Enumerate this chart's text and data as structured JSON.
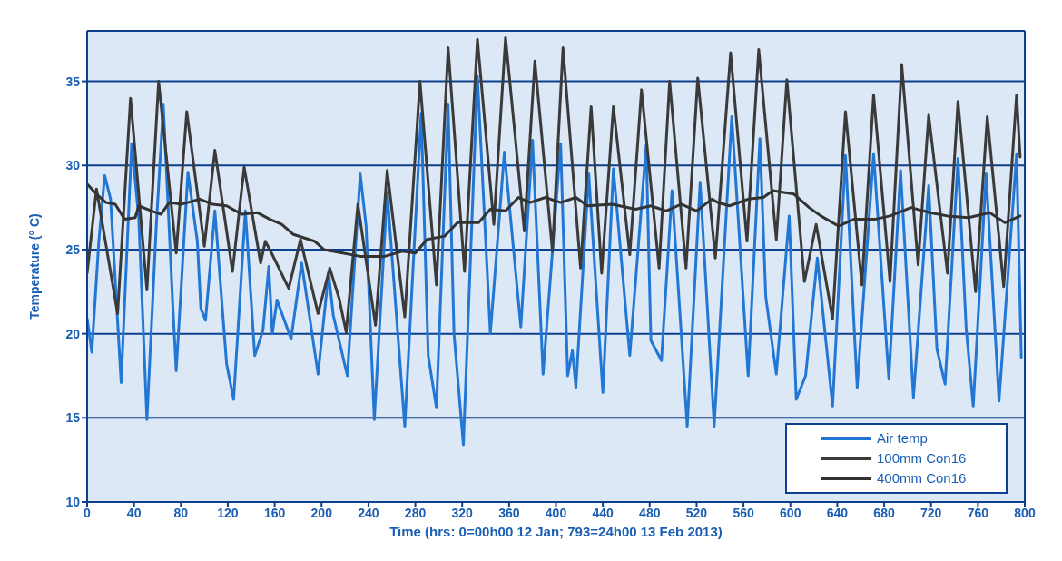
{
  "chart_data": {
    "type": "line",
    "xlabel": "Time (hrs: 0=00h00 12 Jan; 793=24h00 13 Feb 2013)",
    "ylabel": "Temperature (° C)",
    "xlim": [
      0,
      800
    ],
    "xticks": [
      0,
      40,
      80,
      120,
      160,
      200,
      240,
      280,
      320,
      360,
      400,
      440,
      480,
      520,
      560,
      600,
      640,
      680,
      720,
      760,
      800
    ],
    "ylim": [
      10,
      38
    ],
    "yticks": [
      10,
      15,
      20,
      25,
      30,
      35
    ],
    "grid": "y",
    "legend": "bottom right",
    "marker": "none",
    "line_style": "solid",
    "series": [
      {
        "name": "Air temp",
        "color": "#2277d4",
        "x": [
          0,
          4,
          10,
          15,
          20,
          29,
          38,
          44,
          51,
          59,
          65,
          73,
          76,
          86,
          94,
          97,
          101,
          109,
          119,
          125,
          135,
          143,
          150,
          155,
          158,
          162,
          174,
          183,
          197,
          206,
          210,
          222,
          233,
          238,
          245,
          256,
          271,
          285,
          291,
          298,
          308,
          313,
          321,
          333,
          344,
          356,
          370,
          380,
          389,
          404,
          410,
          414,
          417,
          428,
          440,
          449,
          463,
          477,
          481,
          490,
          499,
          512,
          523,
          535,
          550,
          564,
          574,
          579,
          588,
          599,
          605,
          613,
          623,
          636,
          647,
          657,
          671,
          684,
          694,
          705,
          718,
          725,
          732,
          743,
          750,
          756,
          767,
          778,
          793,
          797
        ],
        "values": [
          20.9,
          18.9,
          25.5,
          29.4,
          28,
          17.1,
          31.3,
          26.9,
          14.9,
          26.4,
          33.6,
          21.8,
          17.8,
          29.6,
          25.5,
          21.5,
          20.8,
          27.3,
          18.2,
          16.1,
          27.3,
          18.7,
          20.2,
          24,
          20,
          22,
          19.7,
          24.2,
          17.6,
          23.6,
          21.1,
          17.5,
          29.5,
          26.4,
          14.9,
          28.4,
          14.5,
          33.1,
          18.7,
          15.6,
          33.6,
          20,
          13.4,
          35.3,
          20,
          30.8,
          20.4,
          31.5,
          17.6,
          31.3,
          17.5,
          19,
          16.8,
          29.5,
          16.5,
          29.8,
          18.7,
          31.2,
          19.6,
          18.4,
          28.5,
          14.5,
          29,
          14.5,
          32.9,
          17.5,
          31.6,
          22.2,
          17.6,
          27,
          16.1,
          17.5,
          24.5,
          15.7,
          30.6,
          16.8,
          30.7,
          17.3,
          29.7,
          16.2,
          28.8,
          19.1,
          17,
          30.4,
          20.3,
          15.7,
          29.5,
          16,
          30.7,
          18.6
        ]
      },
      {
        "name": "100mm Con16",
        "color": "#3a3a3a",
        "x": [
          0,
          8,
          26,
          37,
          51,
          61,
          76,
          85,
          100,
          109,
          124,
          134,
          148,
          152,
          158,
          172,
          182,
          197,
          207,
          215,
          221,
          231,
          246,
          256,
          271,
          284,
          298,
          308,
          322,
          333,
          347,
          357,
          373,
          382,
          397,
          406,
          421,
          430,
          439,
          449,
          463,
          473,
          488,
          497,
          511,
          521,
          536,
          549,
          563,
          573,
          588,
          597,
          612,
          622,
          636,
          647,
          661,
          671,
          685,
          695,
          709,
          718,
          734,
          743,
          758,
          768,
          782,
          793,
          796
        ],
        "values": [
          23.6,
          28.6,
          21.2,
          34,
          22.6,
          35,
          24.8,
          33.2,
          25.2,
          30.9,
          23.7,
          29.9,
          24.2,
          25.5,
          24.7,
          22.7,
          25.6,
          21.2,
          23.9,
          22.1,
          20.1,
          27.7,
          20.5,
          29.7,
          21,
          35,
          22.9,
          37,
          23.7,
          37.5,
          26.5,
          37.6,
          26.1,
          36.2,
          24.9,
          37,
          23.9,
          33.5,
          23.6,
          33.5,
          24.7,
          34.5,
          23.9,
          35,
          23.9,
          35.2,
          24.5,
          36.7,
          25.5,
          36.9,
          25.6,
          35.1,
          23.1,
          26.5,
          20.9,
          33.2,
          22.9,
          34.2,
          23.1,
          36,
          24.1,
          33,
          23.6,
          33.8,
          22.5,
          32.9,
          22.8,
          34.2,
          30.5
        ]
      },
      {
        "name": "400mm Con16",
        "color": "#333333",
        "x": [
          0,
          8,
          16,
          24,
          32,
          41,
          44,
          55,
          63,
          70,
          81,
          96,
          107,
          119,
          132,
          145,
          156,
          166,
          176,
          194,
          202,
          218,
          233,
          254,
          269,
          280,
          290,
          305,
          316,
          334,
          344,
          357,
          368,
          378,
          391,
          404,
          417,
          427,
          448,
          468,
          481,
          494,
          507,
          520,
          533,
          538,
          548,
          564,
          577,
          585,
          603,
          616,
          626,
          641,
          654,
          672,
          685,
          703,
          719,
          734,
          752,
          770,
          783,
          796
        ],
        "values": [
          28.9,
          28.3,
          27.8,
          27.7,
          26.8,
          26.9,
          27.6,
          27.3,
          27.1,
          27.8,
          27.7,
          28,
          27.7,
          27.6,
          27.1,
          27.2,
          26.8,
          26.5,
          25.9,
          25.5,
          25,
          24.8,
          24.6,
          24.6,
          24.9,
          24.8,
          25.6,
          25.8,
          26.6,
          26.6,
          27.4,
          27.3,
          28.1,
          27.8,
          28.1,
          27.8,
          28.1,
          27.6,
          27.7,
          27.4,
          27.6,
          27.3,
          27.7,
          27.3,
          28,
          27.8,
          27.6,
          28,
          28.1,
          28.5,
          28.3,
          27.5,
          27,
          26.4,
          26.8,
          26.8,
          27,
          27.5,
          27.2,
          27,
          26.9,
          27.2,
          26.6,
          27
        ]
      }
    ]
  }
}
